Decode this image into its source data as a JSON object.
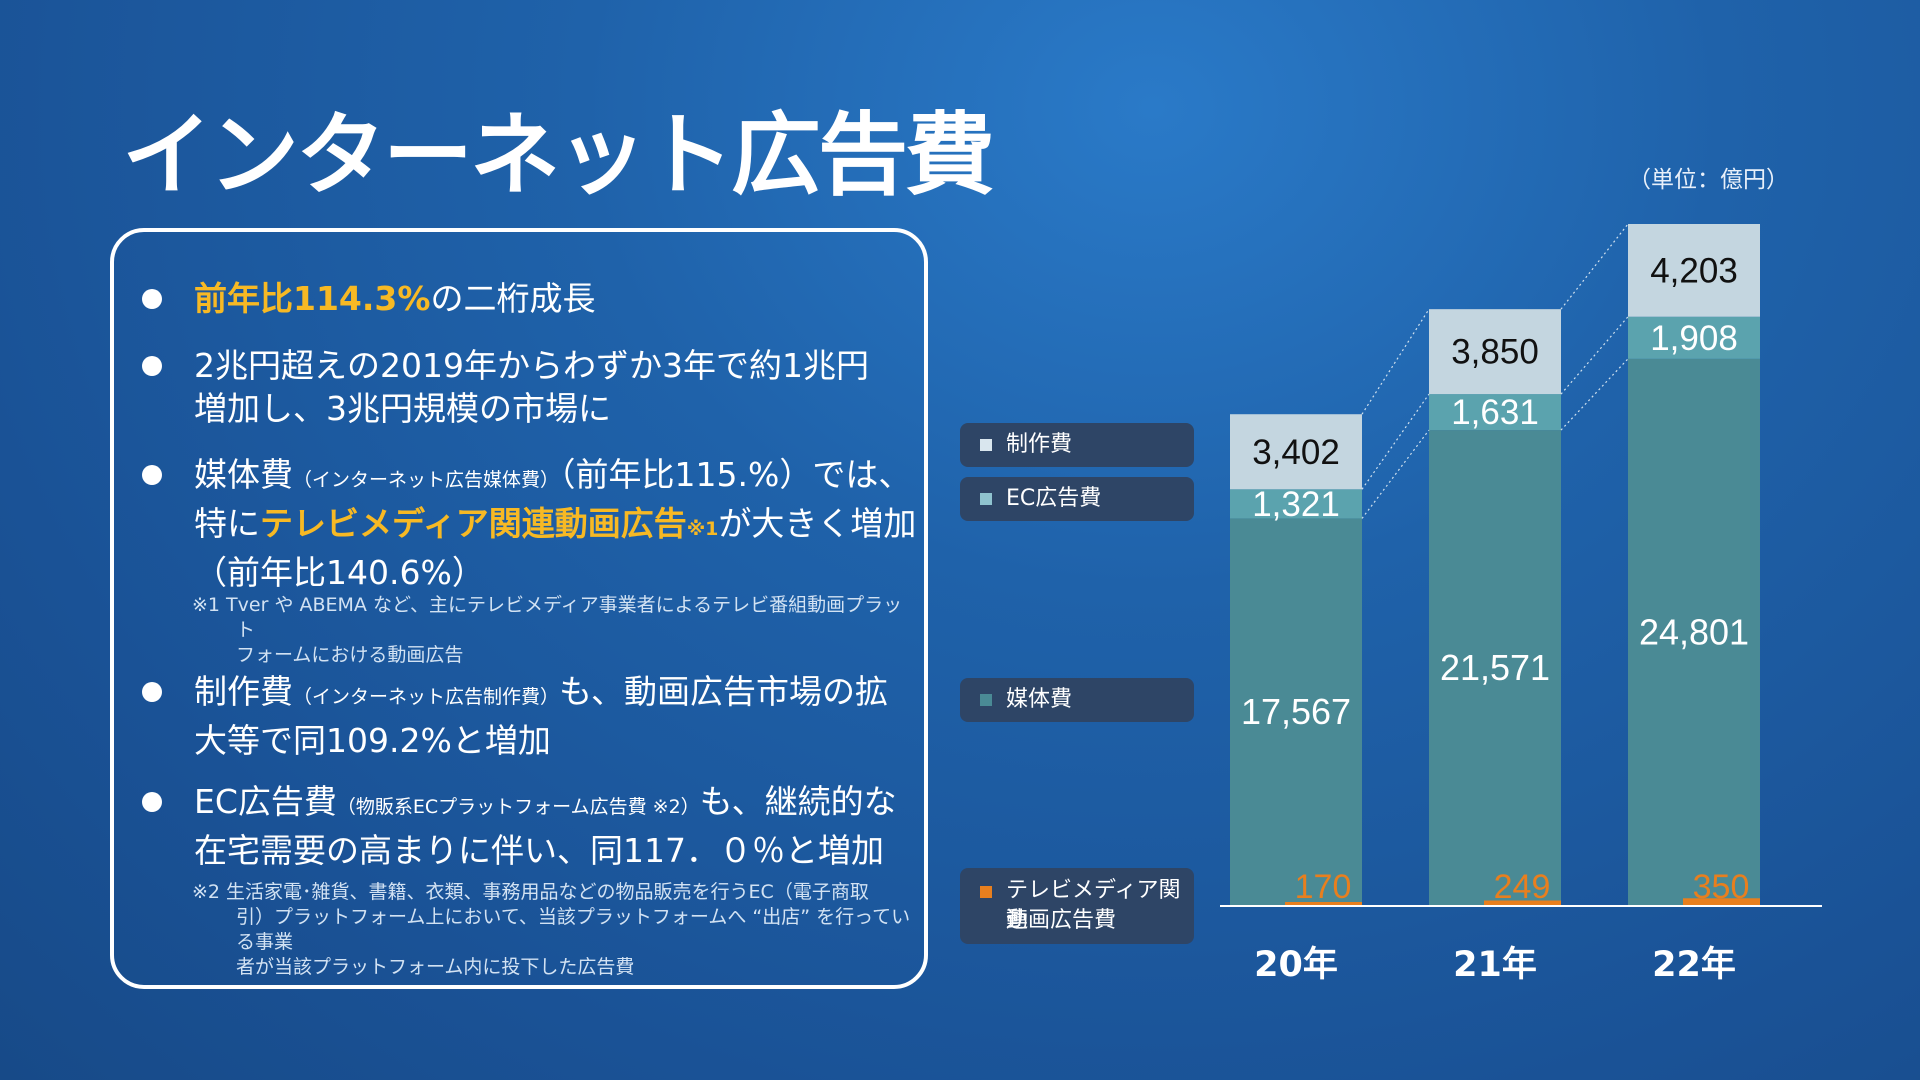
{
  "title": "インターネット広告費",
  "unit_label": "（単位：億円）",
  "bullets": [
    {
      "hl": "前年比114.3%",
      "text": "の二桁成長"
    },
    {
      "line1": "2兆円超えの2019年からわずか3年で約1兆円",
      "line2": "増加し、3兆円規模の市場に"
    },
    {
      "pre": "媒体費",
      "small": "（インターネット広告媒体費）",
      "post": "（前年比115.%）では、",
      "line2_pre": "特に",
      "line2_hl": "テレビメディア関連動画広告",
      "line2_ref": "※1",
      "line2_post": "が大きく増加",
      "line3": "（前年比140.6%）"
    },
    {
      "pre": "制作費",
      "small": "（インターネット広告制作費）",
      "post": "も、動画広告市場の拡",
      "line2": "大等で同109.2%と増加"
    },
    {
      "pre": "EC広告費",
      "small": "（物販系ECプラットフォーム広告費 ※2）",
      "post": "も、継続的な",
      "line2": "在宅需要の高まりに伴い、同117．０％と増加"
    }
  ],
  "notes": [
    {
      "line1": "※1  Tver や ABEMA など、主にテレビメディア事業者によるテレビ番組動画プラット",
      "line2": "フォームにおける動画広告"
    },
    {
      "line1": "※2  生活家電･雑貨、書籍、衣類、事務用品などの物品販売を行うEC（電子商取",
      "line2": "引）プラットフォーム上において、当該プラットフォームへ “出店” を行っている事業",
      "line3": "者が当該プラットフォーム内に投下した広告費"
    }
  ],
  "legend": [
    {
      "label": "制作費",
      "color": "#d9e6ee"
    },
    {
      "label": "EC広告費",
      "color": "#8fc3cf"
    },
    {
      "label": "媒体費",
      "color": "#4a8a95"
    },
    {
      "label_line1": "テレビメディア関連",
      "label_line2": "動画広告費",
      "color": "#e87f1e"
    }
  ],
  "colors": {
    "production": "#c4d6e0",
    "ec": "#5ba3ae",
    "media": "#4a8a95",
    "tv_video": "#e87f1e",
    "highlight": "#f7b924"
  },
  "chart_data": {
    "type": "bar",
    "stacked": true,
    "categories": [
      "20年",
      "21年",
      "22年"
    ],
    "series": [
      {
        "name": "媒体費",
        "values": [
          17567,
          21571,
          24801
        ]
      },
      {
        "name": "EC広告費",
        "values": [
          1321,
          1631,
          1908
        ]
      },
      {
        "name": "制作費",
        "values": [
          3402,
          3850,
          4203
        ]
      }
    ],
    "overlay_series": {
      "name": "テレビメディア関連動画広告費",
      "values": [
        170,
        249,
        350
      ]
    },
    "value_labels": {
      "媒体費": [
        "17,567",
        "21,571",
        "24,801"
      ],
      "EC広告費": [
        "1,321",
        "1,631",
        "1,908"
      ],
      "制作費": [
        "3,402",
        "3,850",
        "4,203"
      ],
      "テレビメディア関連動画広告費": [
        "170",
        "249",
        "350"
      ]
    },
    "title": "",
    "xlabel": "",
    "ylabel": "",
    "unit": "（単位：億円）",
    "grid": false,
    "legend_position": "left"
  }
}
